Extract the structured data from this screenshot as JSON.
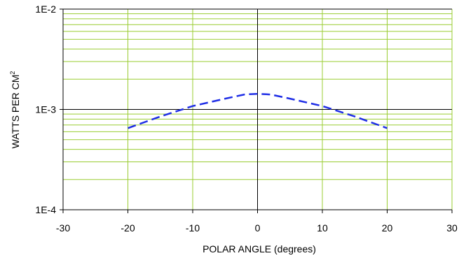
{
  "chart_data": {
    "type": "line",
    "title": "",
    "xlabel": "POLAR ANGLE (degrees)",
    "ylabel": "WATTS PER CM",
    "ylabel_superscript": "2",
    "xlim": [
      -30,
      30
    ],
    "ylim": [
      0.0001,
      0.01
    ],
    "yscale": "log",
    "xticks": [
      -30,
      -20,
      -10,
      0,
      10,
      20,
      30
    ],
    "xtick_labels": [
      "-30",
      "-20",
      "-10",
      "0",
      "10",
      "20",
      "30"
    ],
    "yticks": [
      0.0001,
      0.001,
      0.01
    ],
    "ytick_labels": [
      "1E-4",
      "1E-3",
      "1E-2"
    ],
    "grid": true,
    "colors": {
      "grid": "#9acd32",
      "axis_lines": "#000000",
      "series": "#1f2ee6"
    },
    "series": [
      {
        "name": "",
        "style": "dashed",
        "x": [
          -20,
          -15,
          -10,
          -5,
          -2,
          0,
          2,
          5,
          10,
          15,
          20
        ],
        "y": [
          0.00065,
          0.00085,
          0.00108,
          0.00128,
          0.00141,
          0.00143,
          0.00141,
          0.00128,
          0.00108,
          0.00085,
          0.00065
        ]
      }
    ]
  }
}
